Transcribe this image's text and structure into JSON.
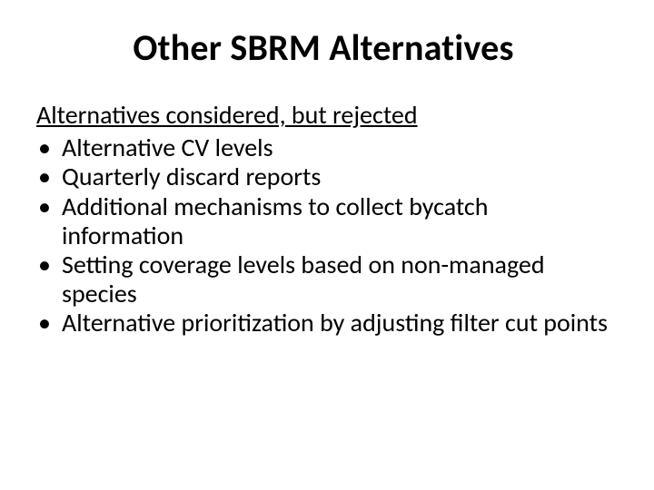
{
  "title": "Other SBRM Alternatives",
  "subhead": "Alternatives considered, but rejected",
  "bullets": [
    "Alternative CV levels",
    "Quarterly discard reports",
    "Additional mechanisms to collect bycatch information",
    "Setting coverage levels based on non-managed species",
    "Alternative prioritization by adjusting filter cut points"
  ],
  "colors": {
    "background": "#ffffff",
    "text": "#000000"
  },
  "typography": {
    "title_fontsize_pt": 40,
    "title_weight": "bold",
    "body_fontsize_pt": 28,
    "font_family": "Calibri"
  }
}
